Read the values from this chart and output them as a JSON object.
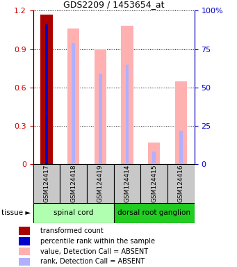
{
  "title": "GDS2209 / 1453654_at",
  "samples": [
    "GSM124417",
    "GSM124418",
    "GSM124419",
    "GSM124414",
    "GSM124415",
    "GSM124416"
  ],
  "transformed_count": [
    1.17,
    null,
    null,
    null,
    null,
    null
  ],
  "percentile_rank_val": [
    0.91,
    null,
    null,
    null,
    null,
    null
  ],
  "value_absent": [
    null,
    1.06,
    0.9,
    1.08,
    0.17,
    0.65
  ],
  "rank_absent_val": [
    null,
    0.79,
    0.59,
    0.65,
    0.08,
    0.22
  ],
  "ylim_left": [
    0,
    1.2
  ],
  "ylim_right": [
    0,
    100
  ],
  "yticks_left": [
    0,
    0.3,
    0.6,
    0.9,
    1.2
  ],
  "yticks_right": [
    0,
    25,
    50,
    75,
    100
  ],
  "left_color": "#cc0000",
  "right_color": "#0000cc",
  "transformed_color": "#aa0000",
  "percentile_color": "#0000cc",
  "value_absent_color": "#ffb0b0",
  "rank_absent_color": "#b0b0ff",
  "tissue_label": "tissue",
  "bg_xtick": "#c8c8c8",
  "spinal_cord_color": "#b0ffb0",
  "drg_color": "#22cc22",
  "spinal_cord_label": "spinal cord",
  "drg_label": "dorsal root ganglion",
  "legend_items": [
    [
      "#aa0000",
      "transformed count"
    ],
    [
      "#0000cc",
      "percentile rank within the sample"
    ],
    [
      "#ffb0b0",
      "value, Detection Call = ABSENT"
    ],
    [
      "#b0b0ff",
      "rank, Detection Call = ABSENT"
    ]
  ]
}
